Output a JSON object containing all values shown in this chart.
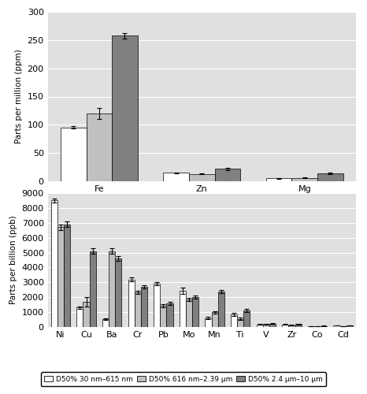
{
  "ppm_elements": [
    "Fe",
    "Zn",
    "Mg"
  ],
  "ppm_values": {
    "white": [
      95,
      15,
      5
    ],
    "lightgray": [
      120,
      13,
      6
    ],
    "darkgray": [
      258,
      22,
      14
    ]
  },
  "ppm_errors": {
    "white": [
      2,
      1,
      0.5
    ],
    "lightgray": [
      10,
      1,
      0.8
    ],
    "darkgray": [
      5,
      2,
      2
    ]
  },
  "ppm_ylim": [
    0,
    300
  ],
  "ppm_yticks": [
    0,
    50,
    100,
    150,
    200,
    250,
    300
  ],
  "ppm_ylabel": "Parts per million (ppm)",
  "ppb_elements": [
    "Ni",
    "Cu",
    "Ba",
    "Cr",
    "Pb",
    "Mo",
    "Mn",
    "Ti",
    "V",
    "Zr",
    "Co",
    "Cd"
  ],
  "ppb_values": {
    "white": [
      8500,
      1300,
      550,
      3200,
      2900,
      2450,
      600,
      850,
      180,
      170,
      60,
      90
    ],
    "lightgray": [
      6700,
      1700,
      5100,
      2350,
      1450,
      1850,
      1000,
      550,
      200,
      120,
      60,
      50
    ],
    "darkgray": [
      6900,
      5100,
      4600,
      2700,
      1600,
      2000,
      2400,
      1100,
      220,
      200,
      70,
      100
    ]
  },
  "ppb_errors": {
    "white": [
      150,
      100,
      50,
      150,
      100,
      200,
      80,
      100,
      20,
      20,
      10,
      10
    ],
    "lightgray": [
      200,
      300,
      200,
      100,
      100,
      100,
      80,
      80,
      20,
      20,
      10,
      10
    ],
    "darkgray": [
      200,
      200,
      150,
      100,
      100,
      100,
      100,
      100,
      20,
      20,
      10,
      10
    ]
  },
  "ppb_ylim": [
    0,
    9000
  ],
  "ppb_yticks": [
    0,
    1000,
    2000,
    3000,
    4000,
    5000,
    6000,
    7000,
    8000,
    9000
  ],
  "ppb_ylabel": "Parts per billion (ppb)",
  "colors": [
    "#ffffff",
    "#c0c0c0",
    "#808080"
  ],
  "edgecolor": "#000000",
  "plot_bg_color": "#e0e0e0",
  "fig_bg_color": "#ffffff",
  "legend_labels": [
    "D50% 30 nm–615 nm",
    "D50% 616 nm–2.39 μm",
    "D50% 2.4 μm–10 μm"
  ]
}
